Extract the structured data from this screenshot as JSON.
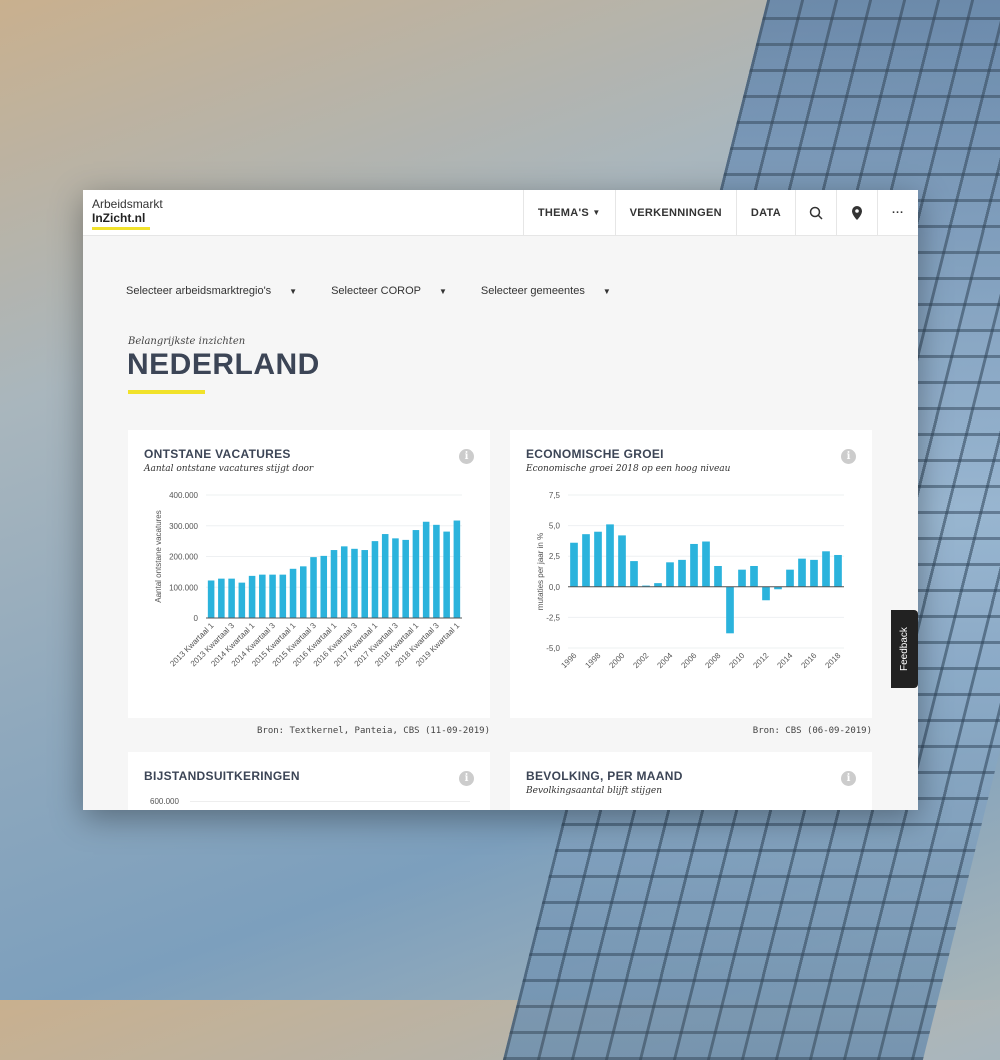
{
  "logo": {
    "line1": "Arbeidsmarkt",
    "line2": "InZicht.nl"
  },
  "nav": {
    "themas": "THEMA'S",
    "verkenningen": "VERKENNINGEN",
    "data": "DATA"
  },
  "filters": [
    "Selecteer arbeidsmarktregio's",
    "Selecteer COROP",
    "Selecteer gemeentes"
  ],
  "page": {
    "kicker": "Belangrijkste inzichten",
    "title": "NEDERLAND"
  },
  "cards": [
    {
      "title": "ONTSTANE VACATURES",
      "subtitle": "Aantal ontstane vacatures stijgt door",
      "source": "Bron: Textkernel, Panteia, CBS (11-09-2019)"
    },
    {
      "title": "ECONOMISCHE GROEI",
      "subtitle": "Economische groei 2018 op een hoog niveau",
      "source": "Bron: CBS (06-09-2019)"
    },
    {
      "title": "BIJSTANDSUITKERINGEN",
      "subtitle": "",
      "first_tick": "600.000"
    },
    {
      "title": "BEVOLKING, PER MAAND",
      "subtitle": "Bevolkingsaantal blijft stijgen"
    }
  ],
  "feedback": "Feedback",
  "colors": {
    "bar": "#2bb3dc",
    "accent": "#f1e22a",
    "heading": "#3c4556"
  },
  "chart_data": [
    {
      "type": "bar",
      "ylabel": "Aantal ontstane vacatures",
      "ylim": [
        0,
        400000
      ],
      "yticks": [
        "0",
        "100.000",
        "200.000",
        "300.000",
        "400.000"
      ],
      "categories": [
        "2013 Kwartaal 1",
        "2013 Kwartaal 2",
        "2013 Kwartaal 3",
        "2013 Kwartaal 4",
        "2014 Kwartaal 1",
        "2014 Kwartaal 2",
        "2014 Kwartaal 3",
        "2014 Kwartaal 4",
        "2015 Kwartaal 1",
        "2015 Kwartaal 2",
        "2015 Kwartaal 3",
        "2015 Kwartaal 4",
        "2016 Kwartaal 1",
        "2016 Kwartaal 2",
        "2016 Kwartaal 3",
        "2016 Kwartaal 4",
        "2017 Kwartaal 1",
        "2017 Kwartaal 2",
        "2017 Kwartaal 3",
        "2017 Kwartaal 4",
        "2018 Kwartaal 1",
        "2018 Kwartaal 2",
        "2018 Kwartaal 3",
        "2018 Kwartaal 4",
        "2019 Kwartaal 1"
      ],
      "values": [
        122000,
        128000,
        128000,
        115000,
        137000,
        141000,
        141000,
        141000,
        160000,
        168000,
        198000,
        202000,
        221000,
        233000,
        225000,
        221000,
        250000,
        273000,
        259000,
        254000,
        286000,
        313000,
        303000,
        281000,
        317000
      ]
    },
    {
      "type": "bar",
      "ylabel": "mutaties per jaar in %",
      "ylim": [
        -5,
        7.5
      ],
      "yticks": [
        "-5,0",
        "-2,5",
        "0,0",
        "2,5",
        "5,0",
        "7,5"
      ],
      "categories": [
        "1996",
        "1997",
        "1998",
        "1999",
        "2000",
        "2001",
        "2002",
        "2003",
        "2004",
        "2005",
        "2006",
        "2007",
        "2008",
        "2009",
        "2010",
        "2011",
        "2012",
        "2013",
        "2014",
        "2015",
        "2016",
        "2017",
        "2018"
      ],
      "values": [
        3.6,
        4.3,
        4.5,
        5.1,
        4.2,
        2.1,
        0.1,
        0.3,
        2.0,
        2.2,
        3.5,
        3.7,
        1.7,
        -3.8,
        1.4,
        1.7,
        -1.1,
        -0.2,
        1.4,
        2.3,
        2.2,
        2.9,
        2.6
      ]
    }
  ]
}
